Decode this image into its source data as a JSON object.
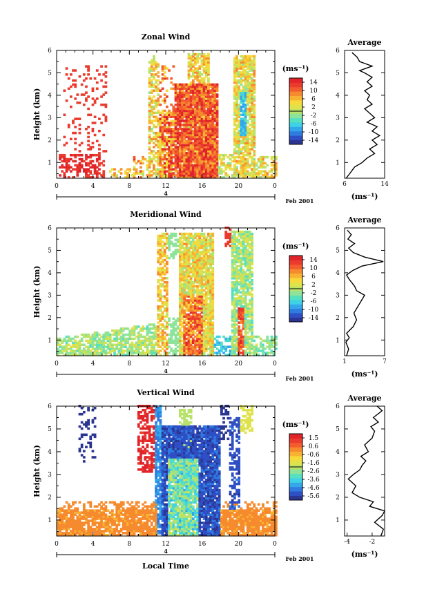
{
  "panels": [
    {
      "title": "Zonal Wind",
      "cbar_unit": "(ms⁻¹)",
      "cbar_ticks": [
        "14",
        "10",
        "6",
        "2",
        "-2",
        "-6",
        "-10",
        "-14"
      ],
      "cbar_range": [
        -16,
        16
      ],
      "avg_title": "Average",
      "avg_xticks": [
        "6",
        "14"
      ],
      "avg_xrange": [
        6,
        14
      ],
      "avg_xlabel": "(ms⁻¹)",
      "avg_profile": [
        [
          6.3,
          0.3
        ],
        [
          7.0,
          0.5
        ],
        [
          8.0,
          0.8
        ],
        [
          9.5,
          1.0
        ],
        [
          10.5,
          1.2
        ],
        [
          12.0,
          1.4
        ],
        [
          11.0,
          1.6
        ],
        [
          12.5,
          1.8
        ],
        [
          11.5,
          2.0
        ],
        [
          13.0,
          2.2
        ],
        [
          11.5,
          2.4
        ],
        [
          12.5,
          2.6
        ],
        [
          10.5,
          2.8
        ],
        [
          12.0,
          3.0
        ],
        [
          11.0,
          3.2
        ],
        [
          10.0,
          3.4
        ],
        [
          11.5,
          3.6
        ],
        [
          10.5,
          3.8
        ],
        [
          11.0,
          4.0
        ],
        [
          10.0,
          4.2
        ],
        [
          11.5,
          4.4
        ],
        [
          10.5,
          4.6
        ],
        [
          11.5,
          4.8
        ],
        [
          10.0,
          5.0
        ],
        [
          9.0,
          5.1
        ],
        [
          11.5,
          5.3
        ],
        [
          9.0,
          5.5
        ],
        [
          8.5,
          5.7
        ],
        [
          7.5,
          5.9
        ]
      ]
    },
    {
      "title": "Meridional Wind",
      "cbar_unit": "(ms⁻¹)",
      "cbar_ticks": [
        "14",
        "10",
        "6",
        "2",
        "-2",
        "-6",
        "-10",
        "-14"
      ],
      "cbar_range": [
        -16,
        16
      ],
      "avg_title": "Average",
      "avg_xticks": [
        "1",
        "7"
      ],
      "avg_xrange": [
        1,
        7
      ],
      "avg_xlabel": "(ms⁻¹)",
      "avg_profile": [
        [
          1.3,
          0.3
        ],
        [
          1.6,
          0.6
        ],
        [
          1.2,
          0.9
        ],
        [
          1.7,
          1.1
        ],
        [
          1.3,
          1.3
        ],
        [
          2.3,
          1.6
        ],
        [
          2.8,
          1.9
        ],
        [
          2.4,
          2.2
        ],
        [
          3.0,
          2.5
        ],
        [
          3.6,
          2.8
        ],
        [
          4.0,
          3.0
        ],
        [
          2.8,
          3.2
        ],
        [
          2.5,
          3.4
        ],
        [
          1.7,
          3.7
        ],
        [
          1.3,
          3.9
        ],
        [
          2.2,
          4.1
        ],
        [
          3.6,
          4.3
        ],
        [
          6.8,
          4.5
        ],
        [
          4.0,
          4.7
        ],
        [
          2.3,
          4.9
        ],
        [
          1.6,
          5.1
        ],
        [
          2.5,
          5.3
        ],
        [
          1.5,
          5.5
        ],
        [
          2.0,
          5.7
        ],
        [
          1.4,
          5.9
        ]
      ]
    },
    {
      "title": "Vertical Wind",
      "cbar_unit": "(ms⁻¹)",
      "cbar_ticks": [
        "1.5",
        "0.6",
        "-0.6",
        "-1.6",
        "-2.6",
        "-3.6",
        "-4.6",
        "-5.6"
      ],
      "cbar_range": [
        -6.0,
        2.0
      ],
      "avg_title": "Average",
      "avg_xticks": [
        "-4",
        "-2"
      ],
      "avg_xrange": [
        -4.2,
        -1.0
      ],
      "avg_xlabel": "(ms⁻¹)",
      "avg_profile": [
        [
          -1.3,
          0.3
        ],
        [
          -1.1,
          0.6
        ],
        [
          -1.8,
          0.9
        ],
        [
          -1.2,
          1.2
        ],
        [
          -1.0,
          1.4
        ],
        [
          -2.2,
          1.6
        ],
        [
          -1.9,
          1.8
        ],
        [
          -3.0,
          2.0
        ],
        [
          -3.6,
          2.2
        ],
        [
          -3.3,
          2.5
        ],
        [
          -3.9,
          2.8
        ],
        [
          -3.5,
          3.0
        ],
        [
          -3.0,
          3.2
        ],
        [
          -2.8,
          3.4
        ],
        [
          -2.5,
          3.6
        ],
        [
          -2.9,
          3.8
        ],
        [
          -2.3,
          4.0
        ],
        [
          -2.6,
          4.3
        ],
        [
          -2.0,
          4.6
        ],
        [
          -1.8,
          4.9
        ],
        [
          -2.1,
          5.1
        ],
        [
          -1.5,
          5.3
        ],
        [
          -1.9,
          5.5
        ],
        [
          -1.2,
          5.8
        ],
        [
          -1.6,
          6.0
        ]
      ]
    }
  ],
  "axis": {
    "ylabel": "Height (km)",
    "yticks": [
      "1",
      "2",
      "3",
      "4",
      "5",
      "6"
    ],
    "yrange": [
      0.3,
      6.0
    ],
    "xticks": [
      "0",
      "4",
      "8",
      "12",
      "16",
      "20",
      "0"
    ],
    "xrange": [
      0,
      24
    ],
    "date_label": "4",
    "month_label": "Feb 2001",
    "xlabel": "Local Time"
  },
  "chart_data": [
    {
      "type": "heatmap",
      "title": "Zonal Wind",
      "xlabel": "Local Time",
      "ylabel": "Height (km)",
      "xlim": [
        0,
        24
      ],
      "ylim": [
        0.3,
        6
      ],
      "zrange": [
        -14,
        14
      ],
      "unit": "(ms⁻¹)"
    },
    {
      "type": "heatmap",
      "title": "Meridional Wind",
      "xlabel": "Local Time",
      "ylabel": "Height (km)",
      "xlim": [
        0,
        24
      ],
      "ylim": [
        0.3,
        6
      ],
      "zrange": [
        -14,
        14
      ],
      "unit": "(ms⁻¹)"
    },
    {
      "type": "heatmap",
      "title": "Vertical Wind",
      "xlabel": "Local Time",
      "ylabel": "Height (km)",
      "xlim": [
        0,
        24
      ],
      "ylim": [
        0.3,
        6
      ],
      "zrange": [
        -5.6,
        1.5
      ],
      "unit": "(ms⁻¹)"
    }
  ]
}
